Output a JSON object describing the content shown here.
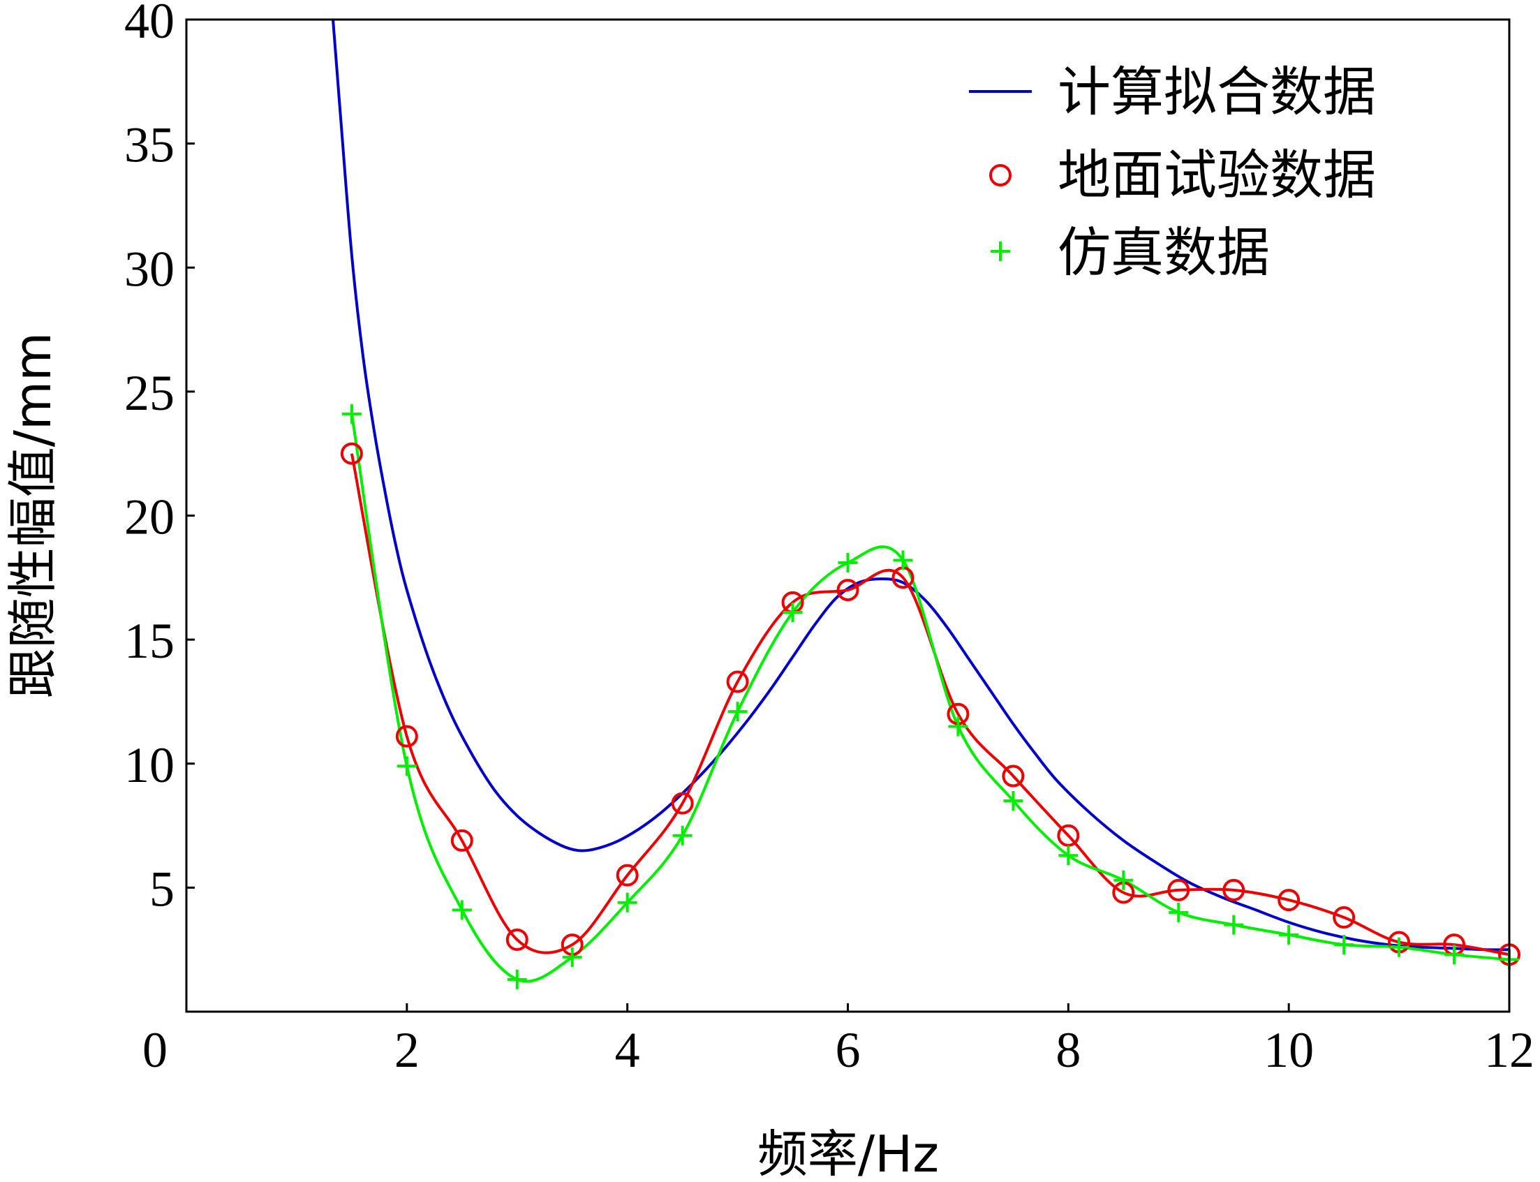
{
  "chart_data": {
    "type": "line",
    "title": "",
    "xlabel": "频率/Hz",
    "ylabel": "跟随性幅值/mm",
    "xlim": [
      0,
      12
    ],
    "ylim": [
      0,
      40
    ],
    "x_ticks": [
      0,
      2,
      4,
      6,
      8,
      10,
      12
    ],
    "y_ticks": [
      5,
      10,
      15,
      20,
      25,
      30,
      35,
      40
    ],
    "legend_position": "top-right",
    "grid": false,
    "series": [
      {
        "name": "计算拟合数据",
        "color": "#0000cc",
        "marker": "none",
        "x": [
          1.33,
          1.4,
          1.5,
          1.6,
          1.7,
          1.8,
          1.9,
          2.0,
          2.2,
          2.4,
          2.6,
          2.8,
          3.0,
          3.2,
          3.4,
          3.55,
          3.7,
          3.9,
          4.1,
          4.3,
          4.5,
          4.7,
          4.9,
          5.1,
          5.3,
          5.5,
          5.7,
          5.9,
          6.1,
          6.3,
          6.5,
          6.7,
          6.9,
          7.1,
          7.3,
          7.5,
          7.7,
          7.9,
          8.2,
          8.5,
          8.8,
          9.1,
          9.4,
          9.7,
          10.0,
          10.3,
          10.6,
          10.9,
          11.2,
          11.5,
          11.8,
          12.0
        ],
        "y": [
          40,
          36,
          30.5,
          26.5,
          23.5,
          21,
          18.8,
          17,
          14.2,
          12,
          10.3,
          8.9,
          7.9,
          7.2,
          6.7,
          6.5,
          6.55,
          6.85,
          7.35,
          8,
          8.8,
          9.7,
          10.7,
          11.8,
          13,
          14.3,
          15.6,
          16.7,
          17.3,
          17.45,
          17.3,
          16.6,
          15.5,
          14.2,
          12.9,
          11.6,
          10.4,
          9.3,
          8,
          6.9,
          6,
          5.2,
          4.6,
          4.1,
          3.6,
          3.2,
          2.9,
          2.7,
          2.6,
          2.55,
          2.5,
          2.5
        ]
      },
      {
        "name": "地面试验数据",
        "color": "#ee0000",
        "marker": "circle",
        "x": [
          1.5,
          2.0,
          2.5,
          3.0,
          3.5,
          4.0,
          4.5,
          5.0,
          5.5,
          6.0,
          6.5,
          7.0,
          7.5,
          8.0,
          8.5,
          9.0,
          9.5,
          10.0,
          10.5,
          11.0,
          11.5,
          12.0
        ],
        "y": [
          22.5,
          11.1,
          6.9,
          2.9,
          2.7,
          5.5,
          8.4,
          13.3,
          16.5,
          17.0,
          17.5,
          12.0,
          9.5,
          7.1,
          4.8,
          4.9,
          4.9,
          4.5,
          3.8,
          2.8,
          2.7,
          2.3
        ]
      },
      {
        "name": "仿真数据",
        "color": "#00ee00",
        "marker": "plus",
        "x": [
          1.5,
          2.0,
          2.5,
          3.0,
          3.5,
          4.0,
          4.5,
          5.0,
          5.5,
          6.0,
          6.5,
          7.0,
          7.5,
          8.0,
          8.5,
          9.0,
          9.5,
          10.0,
          10.5,
          11.0,
          11.5,
          12.0
        ],
        "y": [
          24.1,
          9.9,
          4.1,
          1.3,
          2.2,
          4.4,
          7.1,
          12.1,
          16.1,
          18.1,
          18.2,
          11.5,
          8.5,
          6.3,
          5.3,
          4.0,
          3.5,
          3.1,
          2.7,
          2.6,
          2.3,
          2.1
        ]
      }
    ]
  }
}
